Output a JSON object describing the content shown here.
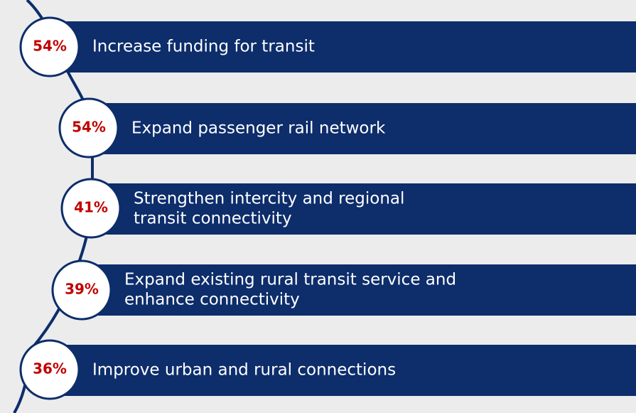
{
  "items": [
    {
      "percent": "54%",
      "lines": [
        "Increase funding for transit"
      ]
    },
    {
      "percent": "54%",
      "lines": [
        "Expand passenger rail network"
      ]
    },
    {
      "percent": "41%",
      "lines": [
        "Strengthen intercity and regional",
        "transit connectivity"
      ]
    },
    {
      "percent": "39%",
      "lines": [
        "Expand existing rural transit service and",
        "enhance connectivity"
      ]
    },
    {
      "percent": "36%",
      "lines": [
        "Improve urban and rural connections"
      ]
    }
  ]
}
